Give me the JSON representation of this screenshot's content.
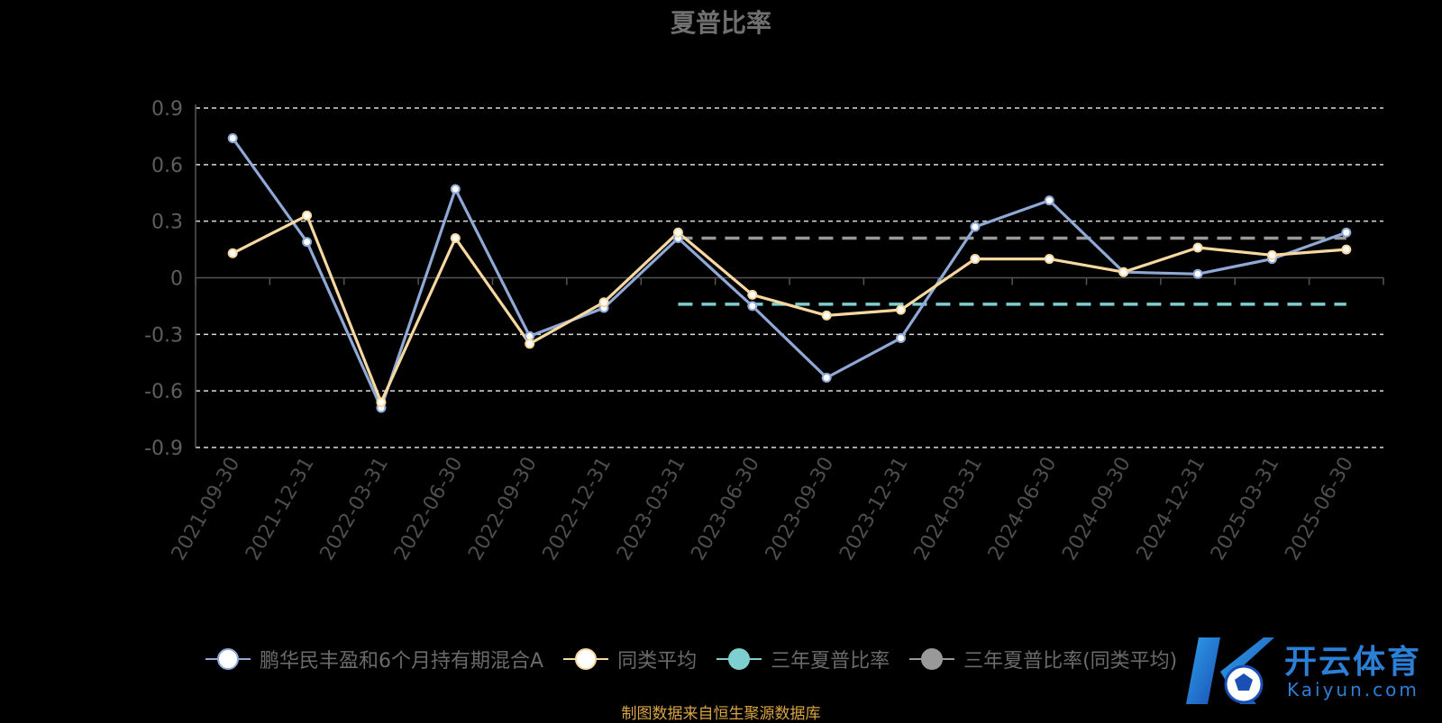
{
  "title": "夏普比率",
  "source": "制图数据来自恒生聚源数据库",
  "watermark": {
    "brand_text": "开云体育",
    "sub_text": "Kaiyun.com"
  },
  "legend": [
    {
      "label": "鹏华民丰盈和6个月持有期混合A",
      "color": "#8fa8d6",
      "fill": "#ffffff"
    },
    {
      "label": "同类平均",
      "color": "#f7d8a0",
      "fill": "#ffffff"
    },
    {
      "label": "三年夏普比率",
      "color": "#7ecfcf",
      "fill": "#7ecfcf"
    },
    {
      "label": "三年夏普比率(同类平均)",
      "color": "#999999",
      "fill": "#999999"
    }
  ],
  "chart_data": {
    "type": "line",
    "title": "夏普比率",
    "categories": [
      "2021-09-30",
      "2021-12-31",
      "2022-03-31",
      "2022-06-30",
      "2022-09-30",
      "2022-12-31",
      "2023-03-31",
      "2023-06-30",
      "2023-09-30",
      "2023-12-31",
      "2024-03-31",
      "2024-06-30",
      "2024-09-30",
      "2024-12-31",
      "2025-03-31",
      "2025-06-30"
    ],
    "y_ticks": [
      "0.9",
      "0.6",
      "0.3",
      "0",
      "-0.3",
      "-0.6",
      "-0.9"
    ],
    "ylim": [
      -0.9,
      0.9
    ],
    "grid": true,
    "legend_position": "bottom",
    "series": [
      {
        "name": "鹏华民丰盈和6个月持有期混合A",
        "color": "#8fa8d6",
        "values": [
          0.74,
          0.19,
          -0.69,
          0.47,
          -0.31,
          -0.16,
          0.21,
          -0.15,
          -0.53,
          -0.32,
          0.27,
          0.41,
          0.03,
          0.02,
          0.1,
          0.24
        ]
      },
      {
        "name": "同类平均",
        "color": "#f7d8a0",
        "values": [
          0.13,
          0.33,
          -0.66,
          0.21,
          -0.35,
          -0.13,
          0.24,
          -0.09,
          -0.2,
          -0.17,
          0.1,
          0.1,
          0.03,
          0.16,
          0.12,
          0.15
        ]
      }
    ],
    "reference_lines": [
      {
        "name": "三年夏普比率",
        "color": "#7ecfcf",
        "value": -0.14,
        "from": "2023-03-31",
        "to": "2025-06-30"
      },
      {
        "name": "三年夏普比率(同类平均)",
        "color": "#999999",
        "value": 0.21,
        "from": "2023-03-31",
        "to": "2025-06-30"
      }
    ]
  }
}
